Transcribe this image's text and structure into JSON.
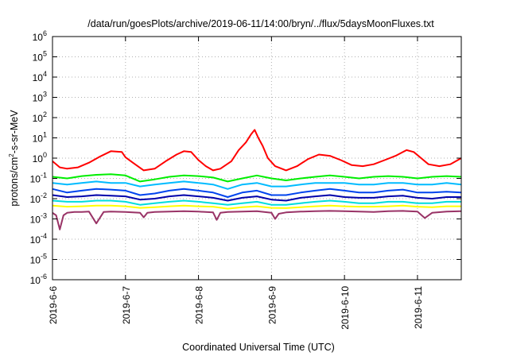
{
  "chart_data": {
    "type": "line",
    "title": "/data/run/goesPlots/archive/2019-06-11/14:00/bryn/../flux/5daysMoonFluxes.txt",
    "xlabel": "Coordinated Universal Time (UTC)",
    "ylabel": {
      "base": "protons/cm",
      "sup": "2",
      "rest": "-s-sr-MeV"
    },
    "yscale": "log",
    "ylim_exp": [
      -6,
      6
    ],
    "ytick_exps": [
      -6,
      -5,
      -4,
      -3,
      -2,
      -1,
      0,
      1,
      2,
      3,
      4,
      5,
      6
    ],
    "ytick_base": "10",
    "xlim_days": [
      0,
      5.6
    ],
    "xticks": [
      {
        "day": 0,
        "label": "2019-6-6"
      },
      {
        "day": 1,
        "label": "2019-6-7"
      },
      {
        "day": 2,
        "label": "2019-6-8"
      },
      {
        "day": 3,
        "label": "2019-6-9"
      },
      {
        "day": 4,
        "label": "2019-6-10"
      },
      {
        "day": 5,
        "label": "2019-6-11"
      }
    ],
    "grid": true,
    "series": [
      {
        "color": "#ff0000",
        "x": [
          0,
          0.1,
          0.2,
          0.35,
          0.5,
          0.65,
          0.8,
          0.95,
          1.0,
          1.1,
          1.25,
          1.4,
          1.55,
          1.7,
          1.8,
          1.9,
          2.0,
          2.1,
          2.2,
          2.3,
          2.45,
          2.55,
          2.65,
          2.72,
          2.77,
          2.82,
          2.88,
          2.95,
          3.05,
          3.2,
          3.35,
          3.5,
          3.65,
          3.8,
          3.95,
          4.1,
          4.25,
          4.4,
          4.55,
          4.7,
          4.85,
          4.95,
          5.05,
          5.15,
          5.3,
          5.45,
          5.6
        ],
        "y": [
          0.7,
          0.35,
          0.3,
          0.35,
          0.6,
          1.2,
          2.2,
          2.0,
          1.1,
          0.6,
          0.25,
          0.3,
          0.7,
          1.5,
          2.2,
          2.0,
          0.8,
          0.4,
          0.25,
          0.3,
          0.7,
          2.5,
          6,
          15,
          25,
          10,
          4,
          1.0,
          0.4,
          0.25,
          0.4,
          0.9,
          1.5,
          1.3,
          0.8,
          0.45,
          0.4,
          0.5,
          0.8,
          1.3,
          2.5,
          2.0,
          1.0,
          0.5,
          0.4,
          0.5,
          1.0
        ]
      },
      {
        "color": "#00ee00",
        "x": [
          0,
          0.2,
          0.4,
          0.6,
          0.8,
          1.0,
          1.2,
          1.4,
          1.6,
          1.8,
          2.0,
          2.2,
          2.4,
          2.6,
          2.8,
          3.0,
          3.2,
          3.4,
          3.6,
          3.8,
          4.0,
          4.2,
          4.4,
          4.6,
          4.8,
          5.0,
          5.2,
          5.4,
          5.6
        ],
        "y": [
          0.12,
          0.1,
          0.13,
          0.15,
          0.16,
          0.14,
          0.07,
          0.09,
          0.12,
          0.14,
          0.13,
          0.11,
          0.07,
          0.1,
          0.14,
          0.1,
          0.08,
          0.1,
          0.12,
          0.14,
          0.12,
          0.1,
          0.12,
          0.13,
          0.12,
          0.1,
          0.12,
          0.13,
          0.12
        ]
      },
      {
        "color": "#00bbff",
        "x": [
          0,
          0.2,
          0.4,
          0.6,
          0.8,
          1.0,
          1.2,
          1.4,
          1.6,
          1.8,
          2.0,
          2.2,
          2.4,
          2.6,
          2.8,
          3.0,
          3.2,
          3.4,
          3.6,
          3.8,
          4.0,
          4.2,
          4.4,
          4.6,
          4.8,
          5.0,
          5.2,
          5.4,
          5.6
        ],
        "y": [
          0.06,
          0.05,
          0.06,
          0.07,
          0.06,
          0.06,
          0.04,
          0.05,
          0.06,
          0.07,
          0.06,
          0.05,
          0.03,
          0.05,
          0.06,
          0.04,
          0.04,
          0.05,
          0.06,
          0.06,
          0.06,
          0.05,
          0.05,
          0.06,
          0.06,
          0.05,
          0.05,
          0.06,
          0.05
        ]
      },
      {
        "color": "#0044ee",
        "x": [
          0,
          0.2,
          0.4,
          0.6,
          0.8,
          1.0,
          1.2,
          1.4,
          1.6,
          1.8,
          2.0,
          2.2,
          2.4,
          2.6,
          2.8,
          3.0,
          3.2,
          3.4,
          3.6,
          3.8,
          4.0,
          4.2,
          4.4,
          4.6,
          4.8,
          5.0,
          5.2,
          5.4,
          5.6
        ],
        "y": [
          0.03,
          0.02,
          0.025,
          0.03,
          0.028,
          0.025,
          0.015,
          0.018,
          0.025,
          0.03,
          0.025,
          0.02,
          0.012,
          0.02,
          0.025,
          0.015,
          0.015,
          0.02,
          0.025,
          0.03,
          0.025,
          0.02,
          0.02,
          0.025,
          0.028,
          0.02,
          0.02,
          0.022,
          0.02
        ]
      },
      {
        "color": "#0000aa",
        "x": [
          0,
          0.2,
          0.4,
          0.6,
          0.8,
          1.0,
          1.2,
          1.4,
          1.6,
          1.8,
          2.0,
          2.2,
          2.4,
          2.6,
          2.8,
          3.0,
          3.2,
          3.4,
          3.6,
          3.8,
          4.0,
          4.2,
          4.4,
          4.6,
          4.8,
          5.0,
          5.2,
          5.4,
          5.6
        ],
        "y": [
          0.015,
          0.012,
          0.013,
          0.015,
          0.014,
          0.013,
          0.009,
          0.01,
          0.013,
          0.015,
          0.013,
          0.011,
          0.008,
          0.011,
          0.013,
          0.009,
          0.008,
          0.011,
          0.013,
          0.015,
          0.012,
          0.011,
          0.011,
          0.013,
          0.014,
          0.011,
          0.01,
          0.012,
          0.012
        ]
      },
      {
        "color": "#00dddd",
        "x": [
          0,
          0.2,
          0.4,
          0.6,
          0.8,
          1.0,
          1.2,
          1.4,
          1.6,
          1.8,
          2.0,
          2.2,
          2.4,
          2.6,
          2.8,
          3.0,
          3.2,
          3.4,
          3.6,
          3.8,
          4.0,
          4.2,
          4.4,
          4.6,
          4.8,
          5.0,
          5.2,
          5.4,
          5.6
        ],
        "y": [
          0.008,
          0.007,
          0.007,
          0.008,
          0.008,
          0.007,
          0.005,
          0.006,
          0.007,
          0.008,
          0.007,
          0.006,
          0.005,
          0.006,
          0.007,
          0.005,
          0.005,
          0.006,
          0.007,
          0.008,
          0.007,
          0.006,
          0.006,
          0.007,
          0.007,
          0.006,
          0.006,
          0.007,
          0.007
        ]
      },
      {
        "color": "#ffff00",
        "x": [
          0,
          0.2,
          0.4,
          0.6,
          0.8,
          1.0,
          1.2,
          1.4,
          1.6,
          1.8,
          2.0,
          2.2,
          2.4,
          2.6,
          2.8,
          3.0,
          3.2,
          3.4,
          3.6,
          3.8,
          4.0,
          4.2,
          4.4,
          4.6,
          4.8,
          5.0,
          5.2,
          5.4,
          5.6
        ],
        "y": [
          0.0045,
          0.004,
          0.0042,
          0.0045,
          0.0045,
          0.0042,
          0.0035,
          0.0038,
          0.0042,
          0.0045,
          0.0042,
          0.004,
          0.0032,
          0.0038,
          0.0042,
          0.0035,
          0.0034,
          0.0038,
          0.0042,
          0.0045,
          0.0042,
          0.004,
          0.004,
          0.0042,
          0.0045,
          0.004,
          0.0038,
          0.0042,
          0.0042
        ]
      },
      {
        "color": "#993366",
        "x": [
          0,
          0.05,
          0.1,
          0.15,
          0.2,
          0.3,
          0.4,
          0.5,
          0.6,
          0.7,
          0.8,
          1.0,
          1.2,
          1.25,
          1.3,
          1.4,
          1.6,
          1.8,
          2.0,
          2.2,
          2.25,
          2.3,
          2.4,
          2.6,
          2.8,
          3.0,
          3.05,
          3.1,
          3.2,
          3.4,
          3.6,
          3.8,
          4.0,
          4.2,
          4.4,
          4.6,
          4.8,
          5.0,
          5.1,
          5.2,
          5.4,
          5.6
        ],
        "y": [
          0.002,
          0.0015,
          0.0003,
          0.0015,
          0.002,
          0.0022,
          0.0022,
          0.0023,
          0.0006,
          0.0022,
          0.0023,
          0.0022,
          0.002,
          0.0012,
          0.002,
          0.0022,
          0.0023,
          0.0024,
          0.0023,
          0.0021,
          0.0009,
          0.002,
          0.0022,
          0.0023,
          0.0024,
          0.002,
          0.001,
          0.0018,
          0.0021,
          0.0023,
          0.0024,
          0.0025,
          0.0024,
          0.0023,
          0.0022,
          0.0024,
          0.0025,
          0.0023,
          0.0011,
          0.002,
          0.0023,
          0.0024
        ]
      }
    ]
  }
}
